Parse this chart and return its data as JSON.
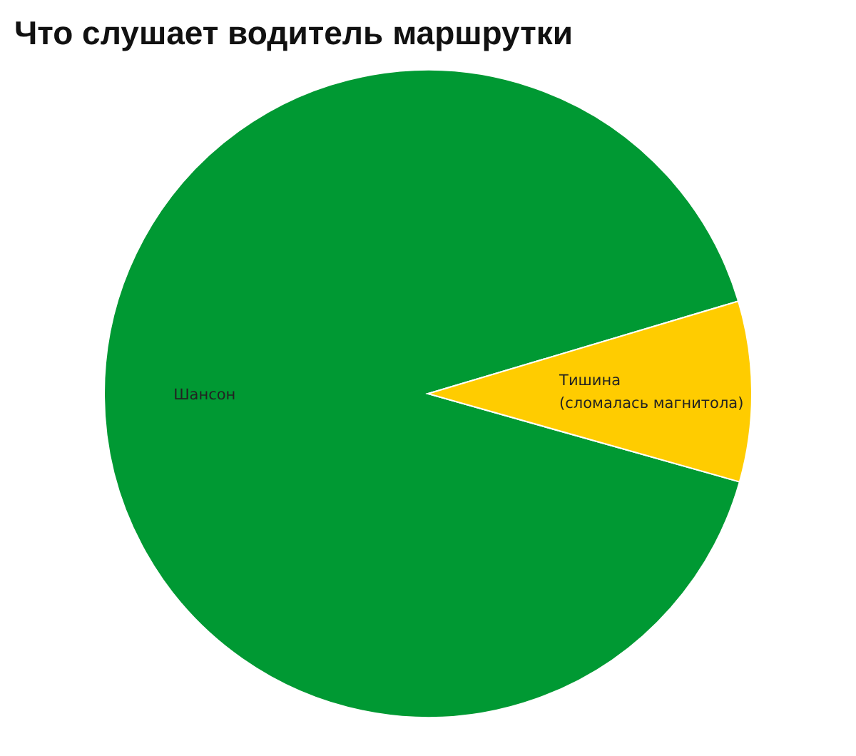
{
  "chart_data": {
    "type": "pie",
    "title": "Что слушает водитель маршрутки",
    "categories": [
      "Шансон",
      "Тишина\n(сломалась магнитола)"
    ],
    "values": [
      91,
      9
    ],
    "colors": [
      "#009933",
      "#ffcc00"
    ]
  }
}
